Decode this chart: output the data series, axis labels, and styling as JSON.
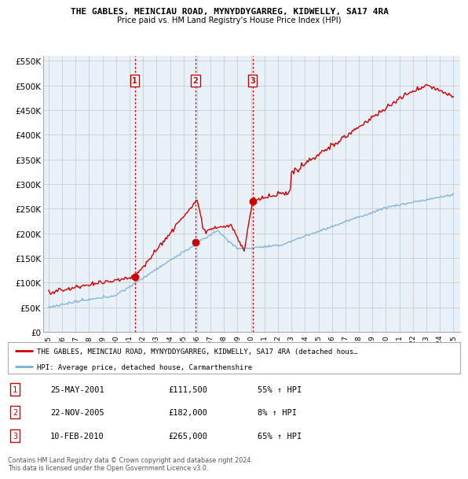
{
  "title": "THE GABLES, MEINCIAU ROAD, MYNYDDYGARREG, KIDWELLY, SA17 4RA",
  "subtitle": "Price paid vs. HM Land Registry's House Price Index (HPI)",
  "ylim": [
    0,
    560000
  ],
  "yticks": [
    0,
    50000,
    100000,
    150000,
    200000,
    250000,
    300000,
    350000,
    400000,
    450000,
    500000,
    550000
  ],
  "ytick_labels": [
    "£0",
    "£50K",
    "£100K",
    "£150K",
    "£200K",
    "£250K",
    "£300K",
    "£350K",
    "£400K",
    "£450K",
    "£500K",
    "£550K"
  ],
  "sale_color": "#cc0000",
  "hpi_color": "#7ab0d4",
  "chart_bg": "#e8f0f8",
  "sales": [
    {
      "date": 2001.38,
      "price": 111500,
      "label": "1"
    },
    {
      "date": 2005.89,
      "price": 182000,
      "label": "2"
    },
    {
      "date": 2010.11,
      "price": 265000,
      "label": "3"
    }
  ],
  "legend_sale_text": "THE GABLES, MEINCIAU ROAD, MYNYDDYGARREG, KIDWELLY, SA17 4RA (detached hous…",
  "legend_hpi_text": "HPI: Average price, detached house, Carmarthenshire",
  "table_rows": [
    {
      "num": "1",
      "date": "25-MAY-2001",
      "price": "£111,500",
      "change": "55% ↑ HPI"
    },
    {
      "num": "2",
      "date": "22-NOV-2005",
      "price": "£182,000",
      "change": "8% ↑ HPI"
    },
    {
      "num": "3",
      "date": "10-FEB-2010",
      "price": "£265,000",
      "change": "65% ↑ HPI"
    }
  ],
  "footer": "Contains HM Land Registry data © Crown copyright and database right 2024.\nThis data is licensed under the Open Government Licence v3.0.",
  "vline_color": "#cc0000",
  "grid_color": "#cccccc",
  "background_color": "#ffffff"
}
